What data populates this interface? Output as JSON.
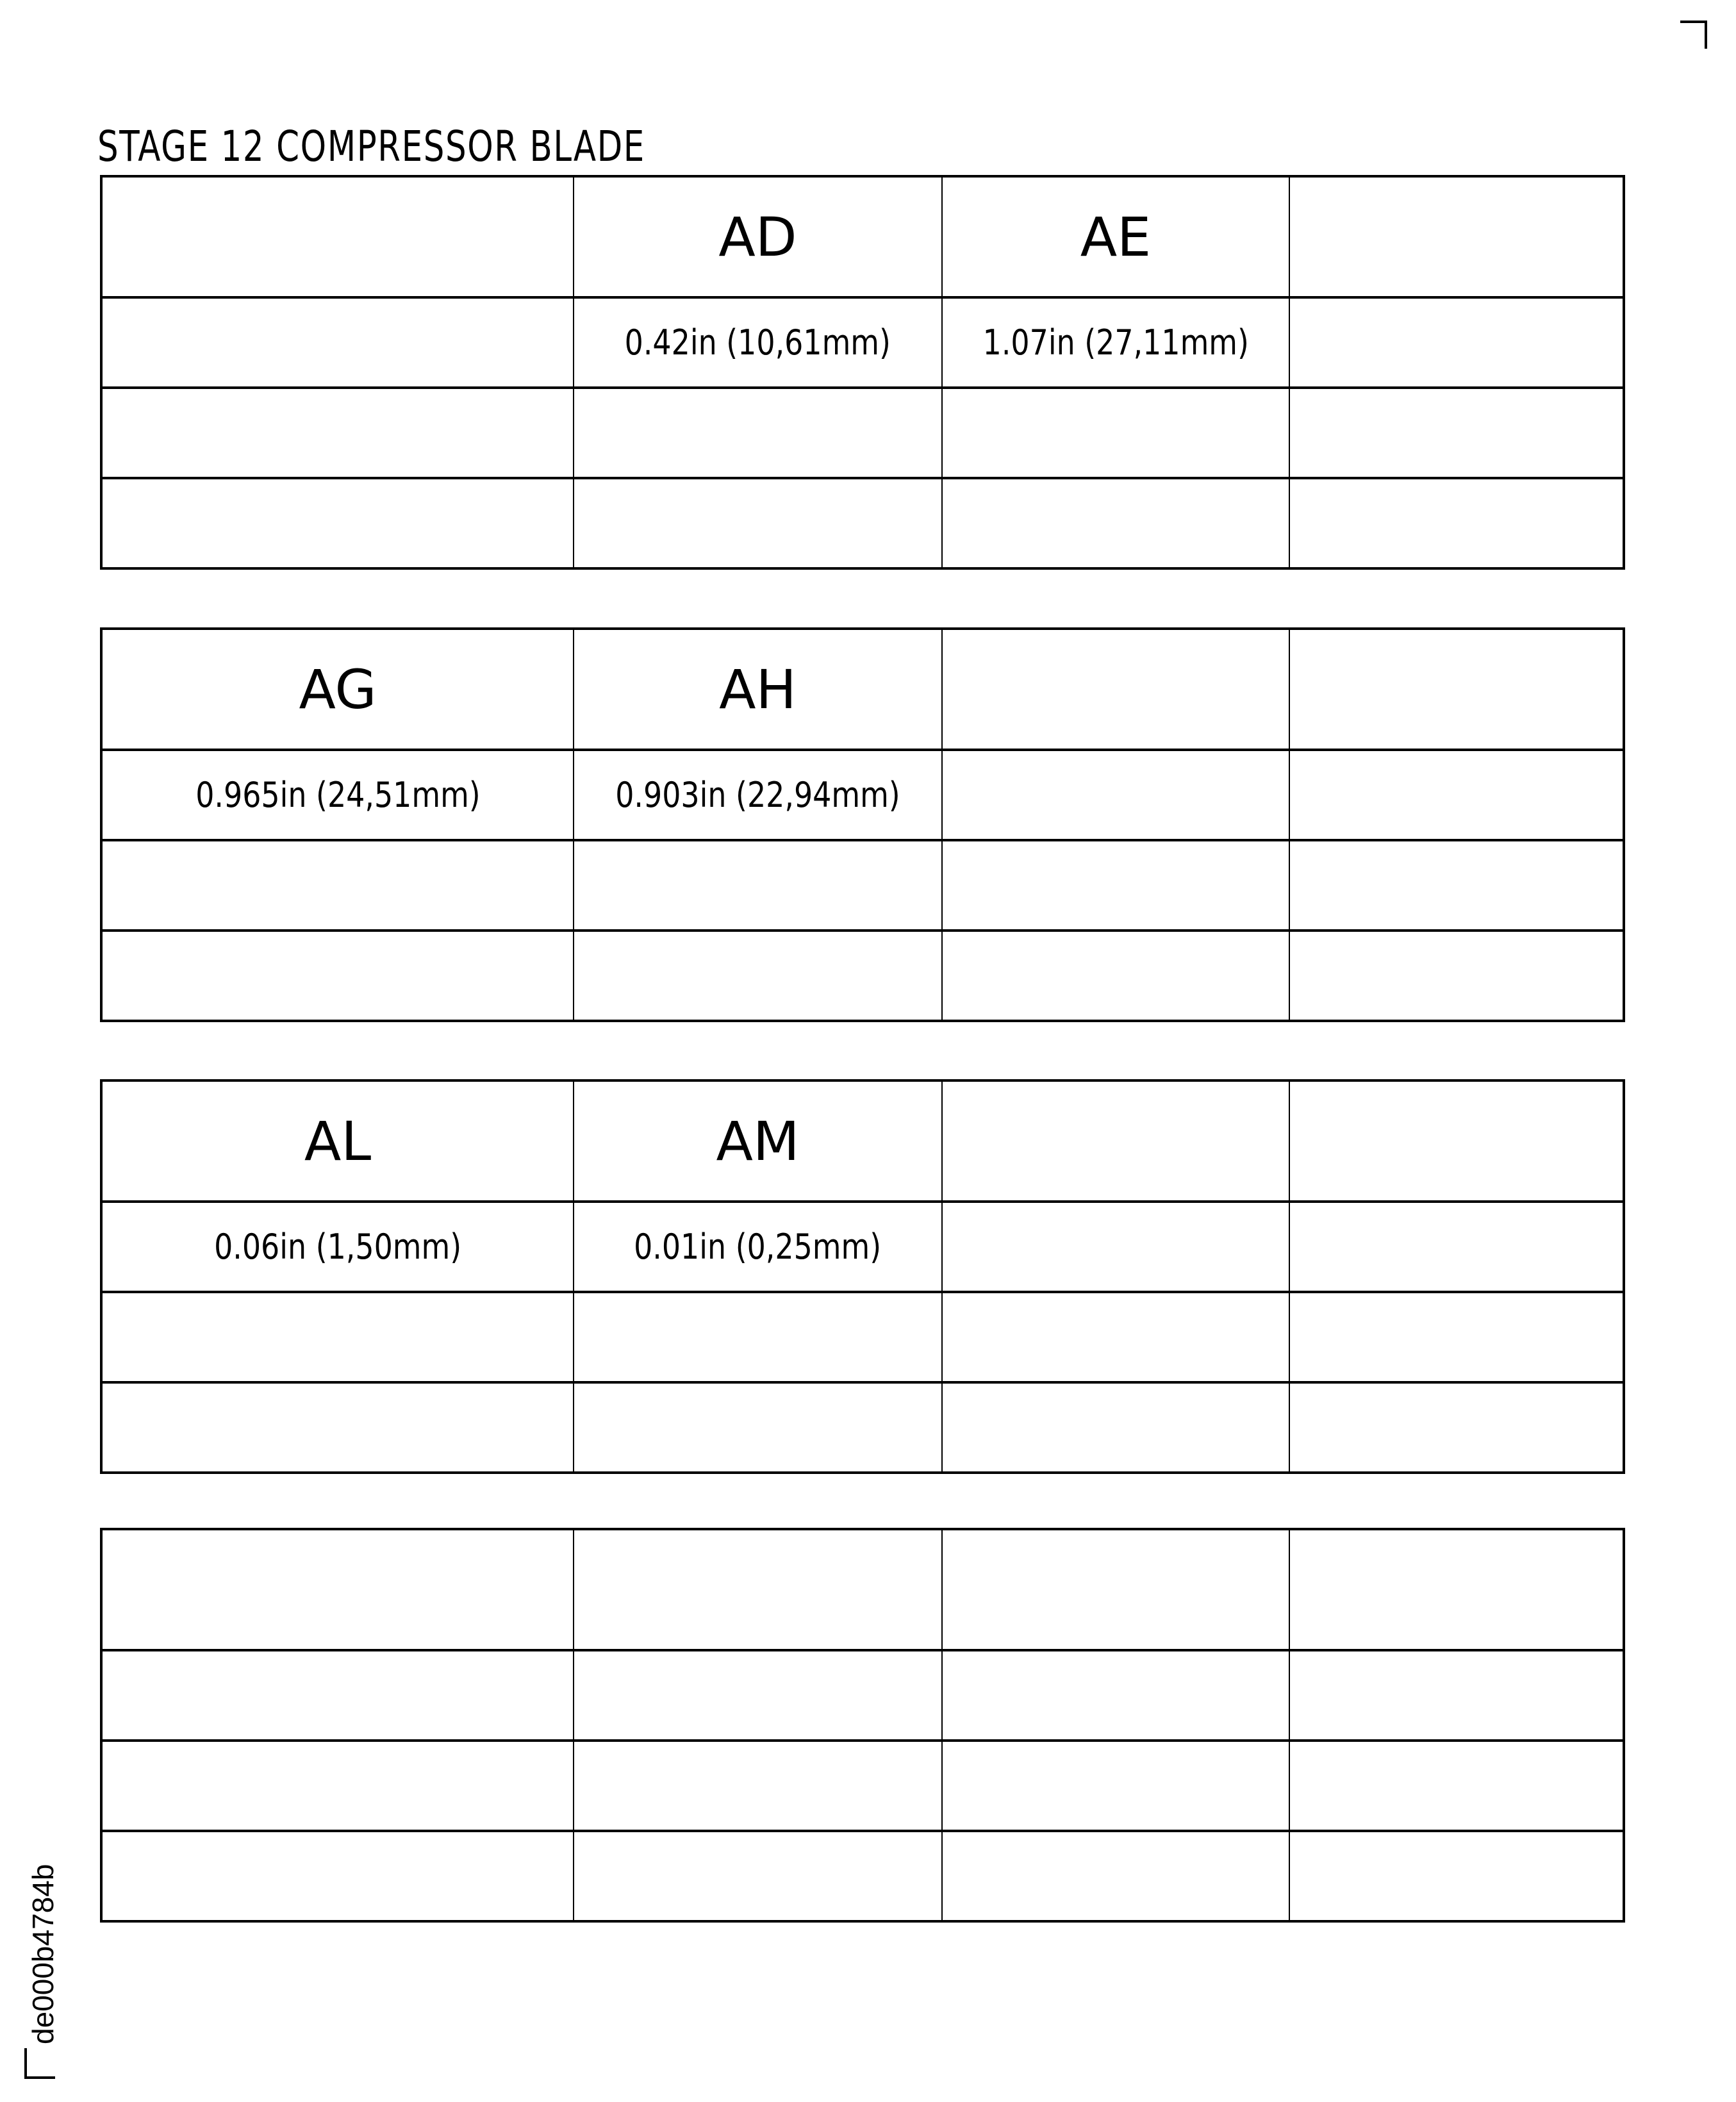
{
  "title": "STAGE 12 COMPRESSOR BLADE",
  "document_id": "de000b4784b",
  "tables": [
    {
      "rows": [
        [
          "",
          "AD",
          "AE",
          ""
        ],
        [
          "",
          "0.42in (10,61mm)",
          "1.07in (27,11mm)",
          ""
        ],
        [
          "",
          "",
          "",
          ""
        ],
        [
          "",
          "",
          "",
          ""
        ]
      ]
    },
    {
      "rows": [
        [
          "AG",
          "AH",
          "",
          ""
        ],
        [
          "0.965in (24,51mm)",
          "0.903in (22,94mm)",
          "",
          ""
        ],
        [
          "",
          "",
          "",
          ""
        ],
        [
          "",
          "",
          "",
          ""
        ]
      ]
    },
    {
      "rows": [
        [
          "AL",
          "AM",
          "",
          ""
        ],
        [
          "0.06in (1,50mm)",
          "0.01in (0,25mm)",
          "",
          ""
        ],
        [
          "",
          "",
          "",
          ""
        ],
        [
          "",
          "",
          "",
          ""
        ]
      ]
    },
    {
      "rows": [
        [
          "",
          "",
          "",
          ""
        ],
        [
          "",
          "",
          "",
          ""
        ],
        [
          "",
          "",
          "",
          ""
        ],
        [
          "",
          "",
          "",
          ""
        ]
      ]
    }
  ]
}
